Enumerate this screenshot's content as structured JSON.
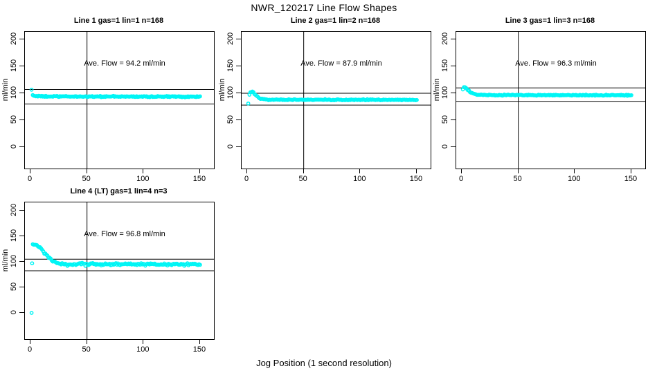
{
  "page": {
    "main_title": "NWR_120217  Line Flow Shapes",
    "x_axis_label": "Jog Position (1 second resolution)",
    "background_color": "#FFFFFF",
    "point_color": "#00F5F5",
    "line_color": "#000000"
  },
  "chart_data": [
    {
      "type": "scatter",
      "title": "Line 1 gas=1 lin=1 n=168",
      "annotation": "Ave. Flow =  94.2  ml/min",
      "ave_flow_ml_min": 94.2,
      "n": 168,
      "ylabel": "ml/min",
      "x_ticks": [
        0,
        50,
        100,
        150
      ],
      "y_ticks": [
        0,
        50,
        100,
        150,
        200
      ],
      "x_range": [
        2,
        150
      ],
      "vline_x": 50,
      "hline_upper": 107,
      "hline_lower": 80,
      "trend_keypoints": [
        [
          2,
          96.5
        ],
        [
          4,
          95
        ],
        [
          8,
          94.3
        ],
        [
          20,
          94
        ],
        [
          150,
          93.7
        ]
      ],
      "outlier_points": [
        [
          1,
          106.5
        ]
      ],
      "noise_sd": 0.55,
      "n_points": 167
    },
    {
      "type": "scatter",
      "title": "Line 2 gas=1 lin=2 n=168",
      "annotation": "Ave. Flow =  87.9  ml/min",
      "ave_flow_ml_min": 87.9,
      "n": 168,
      "ylabel": "ml/min",
      "x_ticks": [
        0,
        50,
        100,
        150
      ],
      "y_ticks": [
        0,
        50,
        100,
        150,
        200
      ],
      "x_range": [
        2,
        150
      ],
      "vline_x": 50,
      "hline_upper": 100,
      "hline_lower": 78,
      "trend_keypoints": [
        [
          2,
          98
        ],
        [
          3,
          102.5
        ],
        [
          5,
          103
        ],
        [
          7,
          98
        ],
        [
          10,
          92
        ],
        [
          13,
          89
        ],
        [
          18,
          88
        ],
        [
          150,
          87.7
        ]
      ],
      "outlier_points": [
        [
          1,
          81
        ]
      ],
      "noise_sd": 0.5,
      "n_points": 167
    },
    {
      "type": "scatter",
      "title": "Line 3 gas=1 lin=3 n=168",
      "annotation": "Ave. Flow =  96.3  ml/min",
      "ave_flow_ml_min": 96.3,
      "n": 168,
      "ylabel": "ml/min",
      "x_ticks": [
        0,
        50,
        100,
        150
      ],
      "y_ticks": [
        0,
        50,
        100,
        150,
        200
      ],
      "x_range": [
        1,
        150
      ],
      "vline_x": 50,
      "hline_upper": 110,
      "hline_lower": 85,
      "trend_keypoints": [
        [
          1,
          107
        ],
        [
          2,
          112.5
        ],
        [
          3,
          112
        ],
        [
          5,
          107
        ],
        [
          8,
          101
        ],
        [
          12,
          98
        ],
        [
          18,
          96.6
        ],
        [
          150,
          96.2
        ]
      ],
      "outlier_points": [],
      "noise_sd": 0.5,
      "n_points": 168
    },
    {
      "type": "scatter",
      "title": "Line 4 (LT) gas=1 lin=4 n=3",
      "annotation": "Ave. Flow =  96.8  ml/min",
      "ave_flow_ml_min": 96.8,
      "n": 3,
      "ylabel": "ml/min",
      "x_ticks": [
        0,
        50,
        100,
        150
      ],
      "y_ticks": [
        0,
        50,
        100,
        150,
        200
      ],
      "x_range": [
        2,
        150
      ],
      "vline_x": 50,
      "hline_upper": 105,
      "hline_lower": 82.5,
      "trend_keypoints": [
        [
          2,
          133
        ],
        [
          5,
          133
        ],
        [
          8,
          128
        ],
        [
          12,
          118
        ],
        [
          16,
          108
        ],
        [
          20,
          101
        ],
        [
          25,
          97
        ],
        [
          30,
          95.5
        ],
        [
          150,
          95
        ]
      ],
      "outlier_points": [
        [
          1,
          0
        ],
        [
          1.5,
          97
        ]
      ],
      "noise_sd": 1.2,
      "n_points": 160
    }
  ]
}
